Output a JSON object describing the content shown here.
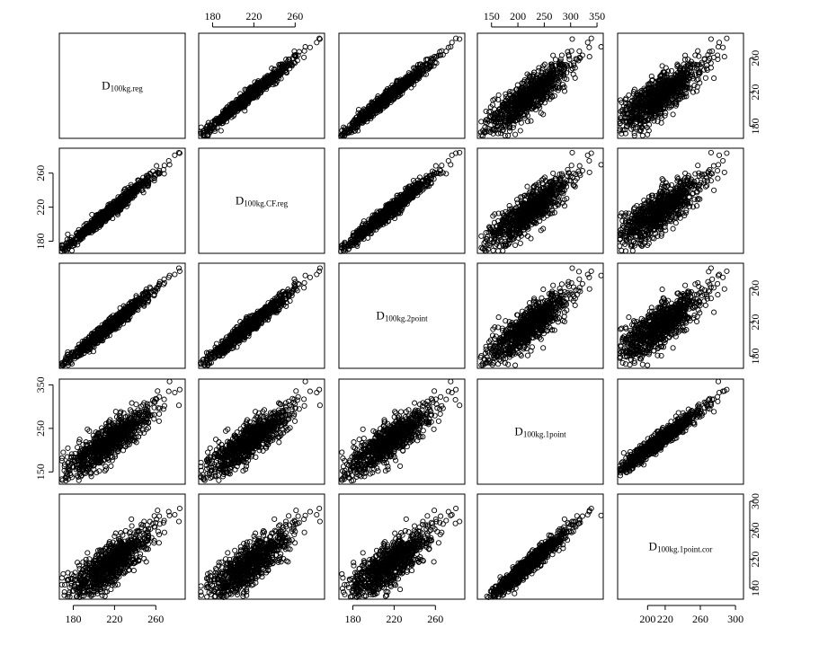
{
  "chart_data": {
    "type": "scatter-matrix",
    "variables": [
      {
        "base": "D",
        "sub": "100kg.reg"
      },
      {
        "base": "D",
        "sub": "100kg.CF.reg"
      },
      {
        "base": "D",
        "sub": "100kg.2point"
      },
      {
        "base": "D",
        "sub": "100kg.1point"
      },
      {
        "base": "D",
        "sub": "100kg.1point.cor"
      }
    ],
    "ranges": [
      [
        170,
        285
      ],
      [
        170,
        285
      ],
      [
        170,
        285
      ],
      [
        130,
        355
      ],
      [
        170,
        305
      ]
    ],
    "ticks": [
      [
        "180",
        "220",
        "260"
      ],
      [
        "180",
        "220",
        "260"
      ],
      [
        "180",
        "220",
        "260"
      ],
      [
        "150",
        "250",
        "350"
      ],
      [
        "180",
        "220",
        "260",
        "300"
      ]
    ],
    "top_axis_ticks": [
      [
        "180",
        "220",
        "260"
      ],
      [
        "150",
        "200",
        "250",
        "300",
        "350"
      ]
    ],
    "bottom_axis_ticks": [
      [
        "180",
        "220",
        "260"
      ],
      [
        "180",
        "220",
        "260"
      ],
      [
        "200",
        "220",
        "260",
        "300"
      ]
    ],
    "n_points": 900,
    "correlation_structure": "strong positive linear relationships in all off-diagonal panels; tightest among reg, CF.reg and 2point; widest scatter involving 1point",
    "grid": false,
    "legend": "none"
  }
}
